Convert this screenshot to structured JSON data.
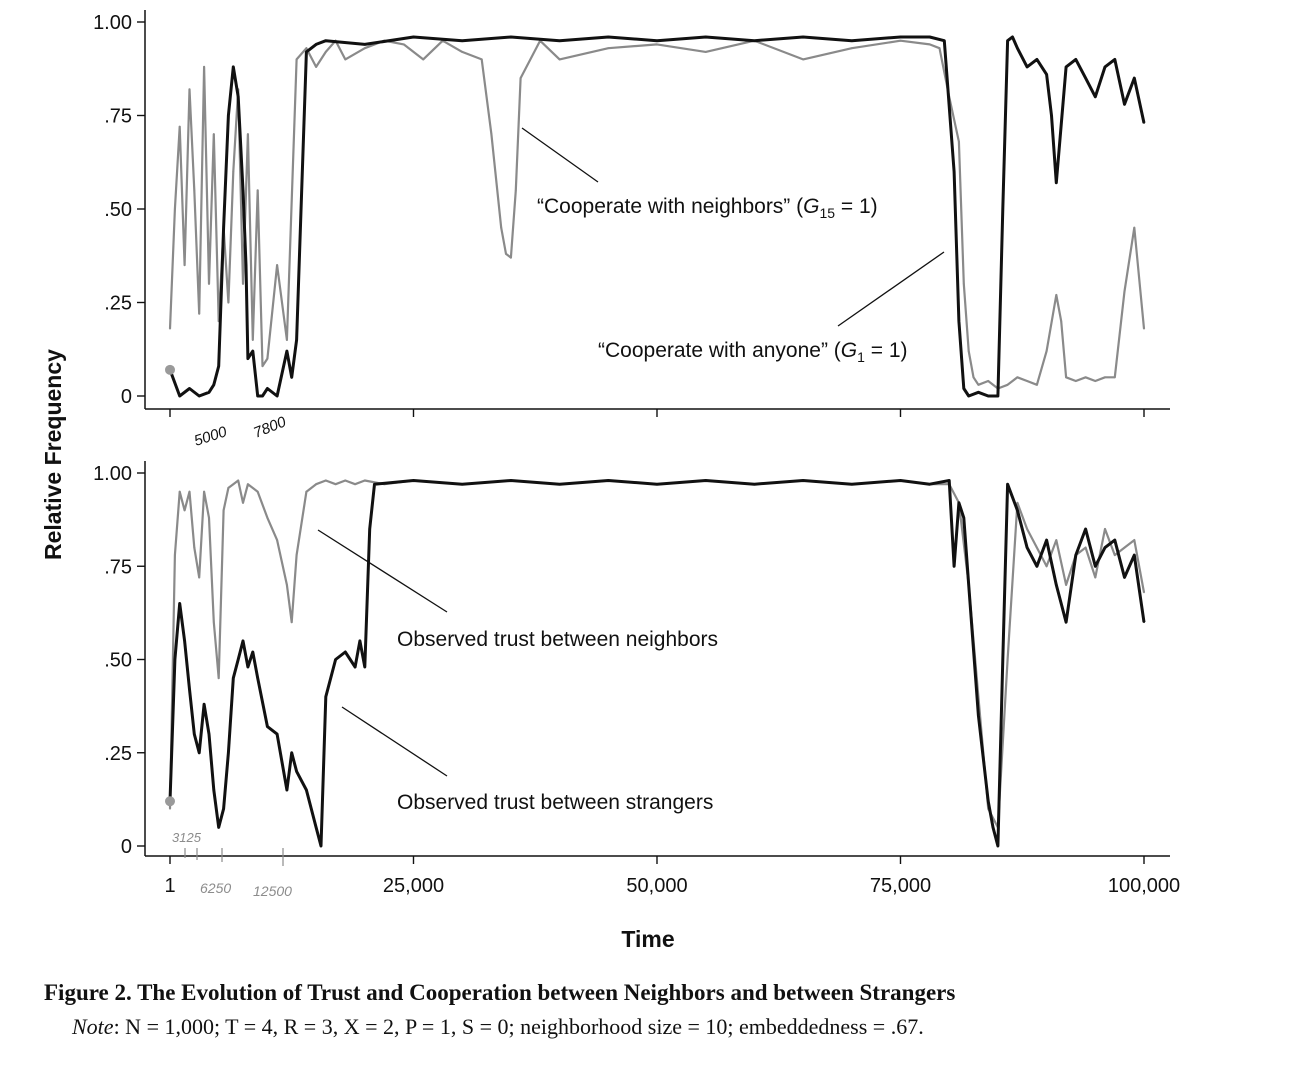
{
  "y_axis_label": "Relative Frequency",
  "x_axis_label": "Time",
  "caption": {
    "figure_label": "Figure 2.",
    "title": "The Evolution of Trust and Cooperation between Neighbors and between Strangers",
    "note_label": "Note",
    "note_text": ": N = 1,000; T = 4, R = 3, X = 2, P = 1, S = 0; neighborhood size = 10; embeddedness = .67."
  },
  "handwritten": {
    "top": [
      "5000",
      "7800"
    ],
    "bottom": [
      "3125",
      "6250",
      "12500"
    ]
  },
  "colors": {
    "dark_series": "#111111",
    "gray_series": "#8a8a8a",
    "handwriting": "#8c8c8c",
    "marker": "#9a9a9a"
  },
  "chart_data": [
    {
      "type": "line",
      "panel": "top",
      "xlim": [
        1,
        100000
      ],
      "ylim": [
        0,
        1.0
      ],
      "yticks": [
        0,
        0.25,
        0.5,
        0.75,
        1.0
      ],
      "ytick_labels": [
        "0",
        ".25",
        ".50",
        ".75",
        "1.00"
      ],
      "series": [
        {
          "name": "“Cooperate with neighbors” (G15 = 1)",
          "label_parts": [
            "“Cooperate with neighbors” (",
            "G",
            "15",
            " = 1)"
          ],
          "style": "gray",
          "x": [
            1,
            500,
            1000,
            1500,
            2000,
            2500,
            3000,
            3500,
            4000,
            4500,
            5000,
            5500,
            6000,
            6500,
            7000,
            7500,
            8000,
            8500,
            9000,
            9500,
            10000,
            11000,
            12000,
            13000,
            14000,
            15000,
            16000,
            17000,
            18000,
            20000,
            22000,
            24000,
            26000,
            28000,
            30000,
            32000,
            33000,
            34000,
            34500,
            35000,
            35500,
            36000,
            38000,
            40000,
            45000,
            50000,
            55000,
            60000,
            65000,
            70000,
            75000,
            78000,
            79000,
            80000,
            81000,
            81500,
            82000,
            82500,
            83000,
            84000,
            85000,
            86000,
            87000,
            88000,
            89000,
            90000,
            91000,
            91500,
            92000,
            93000,
            94000,
            95000,
            96000,
            97000,
            98000,
            99000,
            100000
          ],
          "values": [
            0.18,
            0.5,
            0.72,
            0.35,
            0.82,
            0.55,
            0.22,
            0.88,
            0.3,
            0.7,
            0.2,
            0.45,
            0.25,
            0.6,
            0.82,
            0.3,
            0.7,
            0.15,
            0.55,
            0.08,
            0.1,
            0.35,
            0.15,
            0.9,
            0.93,
            0.88,
            0.92,
            0.95,
            0.9,
            0.93,
            0.95,
            0.94,
            0.9,
            0.95,
            0.92,
            0.9,
            0.7,
            0.45,
            0.38,
            0.37,
            0.55,
            0.85,
            0.95,
            0.9,
            0.93,
            0.94,
            0.92,
            0.95,
            0.9,
            0.93,
            0.95,
            0.94,
            0.93,
            0.8,
            0.68,
            0.3,
            0.12,
            0.05,
            0.03,
            0.04,
            0.02,
            0.03,
            0.05,
            0.04,
            0.03,
            0.12,
            0.27,
            0.2,
            0.05,
            0.04,
            0.05,
            0.04,
            0.05,
            0.05,
            0.28,
            0.45,
            0.18
          ]
        },
        {
          "name": "“Cooperate with anyone” (G1 = 1)",
          "label_parts": [
            "“Cooperate with anyone” (",
            "G",
            "1",
            " = 1)"
          ],
          "style": "dark",
          "x": [
            1,
            1000,
            2000,
            3000,
            4000,
            4500,
            5000,
            5500,
            6000,
            6500,
            7000,
            7500,
            7800,
            8000,
            8500,
            9000,
            9500,
            10000,
            11000,
            12000,
            12500,
            13000,
            14000,
            15000,
            16000,
            20000,
            25000,
            30000,
            35000,
            40000,
            45000,
            50000,
            55000,
            60000,
            65000,
            70000,
            75000,
            78000,
            79500,
            80500,
            81000,
            81500,
            82000,
            83000,
            84000,
            85000,
            85500,
            86000,
            86500,
            87000,
            88000,
            89000,
            90000,
            90500,
            91000,
            92000,
            93000,
            94000,
            95000,
            96000,
            97000,
            98000,
            99000,
            100000
          ],
          "values": [
            0.07,
            0.0,
            0.02,
            0.0,
            0.01,
            0.03,
            0.08,
            0.45,
            0.75,
            0.88,
            0.8,
            0.55,
            0.35,
            0.1,
            0.12,
            0.0,
            0.0,
            0.02,
            0.0,
            0.12,
            0.05,
            0.15,
            0.92,
            0.94,
            0.95,
            0.94,
            0.96,
            0.95,
            0.96,
            0.95,
            0.96,
            0.95,
            0.96,
            0.95,
            0.96,
            0.95,
            0.96,
            0.96,
            0.95,
            0.6,
            0.2,
            0.02,
            0.0,
            0.01,
            0.0,
            0.0,
            0.5,
            0.95,
            0.96,
            0.93,
            0.88,
            0.9,
            0.86,
            0.75,
            0.57,
            0.88,
            0.9,
            0.85,
            0.8,
            0.88,
            0.9,
            0.78,
            0.85,
            0.73
          ]
        }
      ]
    },
    {
      "type": "line",
      "panel": "bottom",
      "xlim": [
        1,
        100000
      ],
      "ylim": [
        0,
        1.0
      ],
      "yticks": [
        0,
        0.25,
        0.5,
        0.75,
        1.0
      ],
      "ytick_labels": [
        "0",
        ".25",
        ".50",
        ".75",
        "1.00"
      ],
      "xticks": [
        1,
        25000,
        50000,
        75000,
        100000
      ],
      "xtick_labels": [
        "1",
        "25,000",
        "50,000",
        "75,000",
        "100,000"
      ],
      "series": [
        {
          "name": "Observed trust between neighbors",
          "style": "gray",
          "x": [
            1,
            500,
            1000,
            1500,
            2000,
            2500,
            3000,
            3500,
            4000,
            4500,
            5000,
            5500,
            6000,
            6500,
            7000,
            7500,
            8000,
            9000,
            10000,
            11000,
            12000,
            12500,
            13000,
            14000,
            15000,
            16000,
            17000,
            18000,
            19000,
            20000,
            22000,
            25000,
            30000,
            35000,
            40000,
            45000,
            50000,
            55000,
            60000,
            65000,
            70000,
            75000,
            78000,
            80000,
            81000,
            82000,
            83000,
            84000,
            85000,
            86000,
            87000,
            88000,
            89000,
            90000,
            91000,
            92000,
            93000,
            94000,
            95000,
            96000,
            97000,
            98000,
            99000,
            100000
          ],
          "values": [
            0.1,
            0.78,
            0.95,
            0.9,
            0.95,
            0.8,
            0.72,
            0.95,
            0.88,
            0.6,
            0.45,
            0.9,
            0.96,
            0.97,
            0.98,
            0.92,
            0.97,
            0.95,
            0.88,
            0.82,
            0.7,
            0.6,
            0.78,
            0.95,
            0.97,
            0.98,
            0.97,
            0.98,
            0.97,
            0.98,
            0.97,
            0.98,
            0.97,
            0.98,
            0.97,
            0.98,
            0.97,
            0.98,
            0.97,
            0.98,
            0.97,
            0.98,
            0.97,
            0.97,
            0.92,
            0.7,
            0.4,
            0.1,
            0.05,
            0.5,
            0.92,
            0.85,
            0.8,
            0.75,
            0.82,
            0.7,
            0.78,
            0.8,
            0.72,
            0.85,
            0.78,
            0.8,
            0.82,
            0.68
          ]
        },
        {
          "name": "Observed trust between strangers",
          "style": "dark",
          "x": [
            1,
            500,
            1000,
            1500,
            2000,
            2500,
            3000,
            3500,
            4000,
            4500,
            5000,
            5500,
            6000,
            6500,
            7000,
            7500,
            8000,
            8500,
            9000,
            10000,
            11000,
            12000,
            12500,
            13000,
            14000,
            15000,
            15500,
            16000,
            17000,
            18000,
            19000,
            19500,
            20000,
            20500,
            21000,
            25000,
            30000,
            35000,
            40000,
            45000,
            50000,
            55000,
            60000,
            65000,
            70000,
            75000,
            78000,
            80000,
            80500,
            81000,
            81500,
            82000,
            83000,
            84000,
            84500,
            85000,
            85500,
            86000,
            87000,
            88000,
            89000,
            90000,
            91000,
            92000,
            93000,
            94000,
            95000,
            96000,
            97000,
            98000,
            99000,
            100000
          ],
          "values": [
            0.12,
            0.5,
            0.65,
            0.55,
            0.42,
            0.3,
            0.25,
            0.38,
            0.3,
            0.15,
            0.05,
            0.1,
            0.25,
            0.45,
            0.5,
            0.55,
            0.48,
            0.52,
            0.45,
            0.32,
            0.3,
            0.15,
            0.25,
            0.2,
            0.15,
            0.05,
            0.0,
            0.4,
            0.5,
            0.52,
            0.48,
            0.55,
            0.48,
            0.85,
            0.97,
            0.98,
            0.97,
            0.98,
            0.97,
            0.98,
            0.97,
            0.98,
            0.97,
            0.98,
            0.97,
            0.98,
            0.97,
            0.98,
            0.75,
            0.92,
            0.88,
            0.7,
            0.35,
            0.12,
            0.05,
            0.0,
            0.5,
            0.97,
            0.9,
            0.8,
            0.75,
            0.82,
            0.7,
            0.6,
            0.78,
            0.85,
            0.75,
            0.8,
            0.82,
            0.72,
            0.78,
            0.6
          ]
        }
      ]
    }
  ]
}
